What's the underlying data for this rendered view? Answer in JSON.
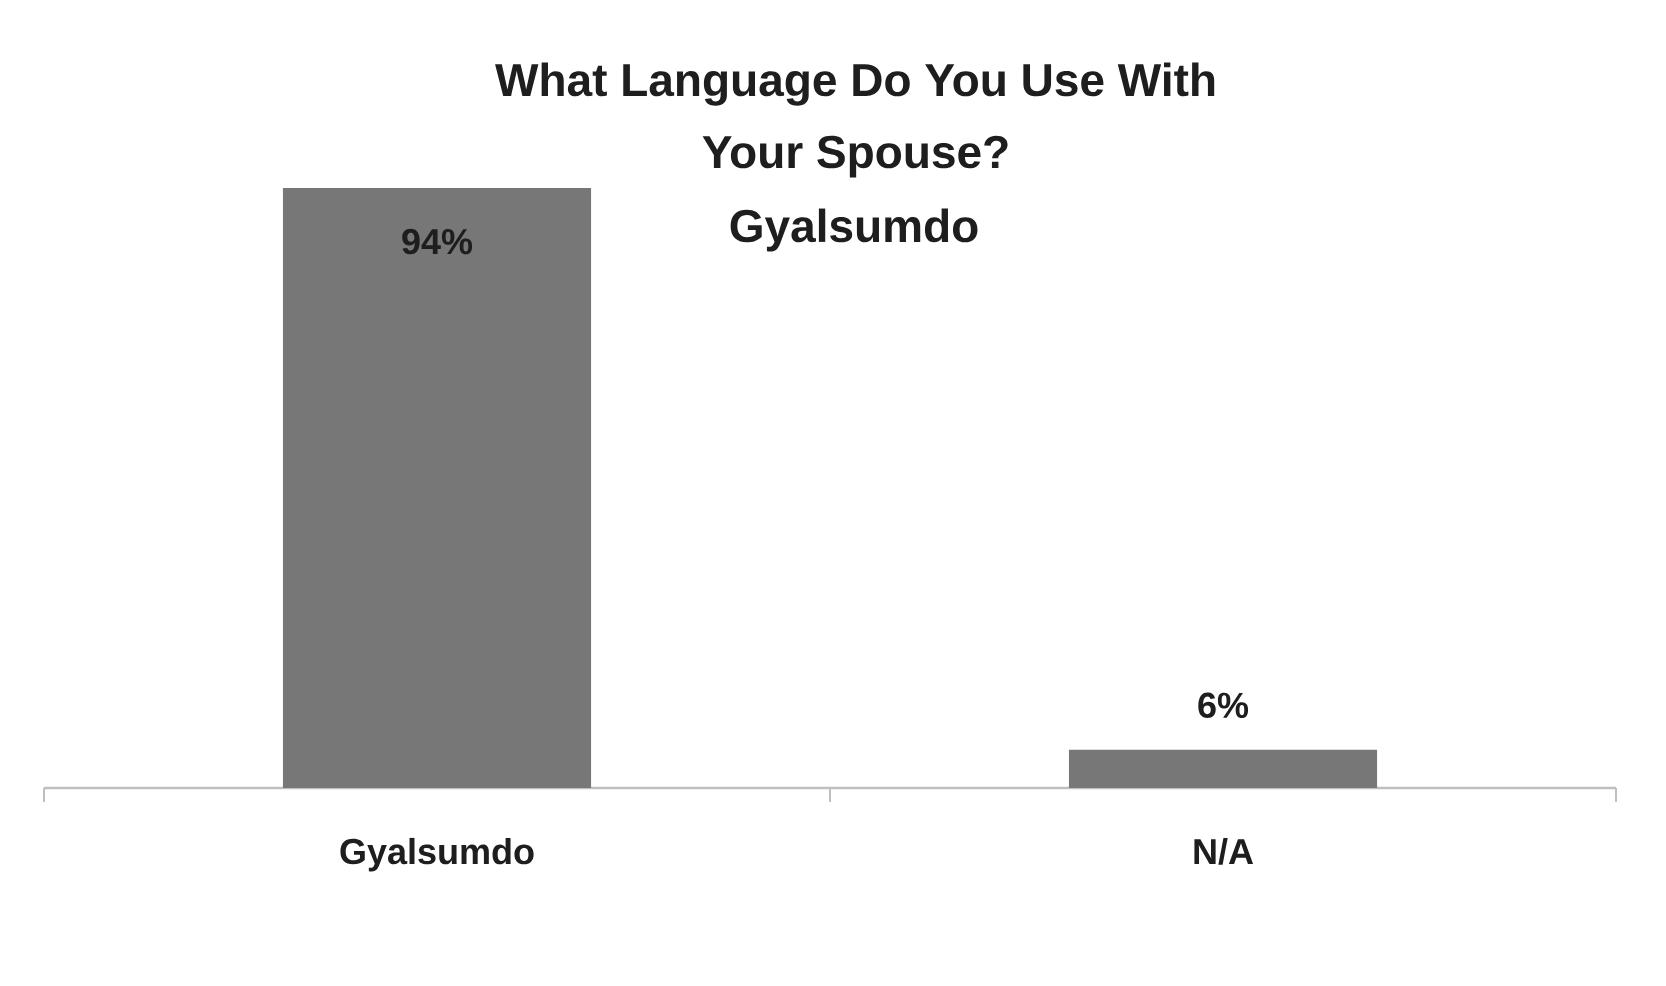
{
  "chart_data": {
    "type": "bar",
    "title": "What Language Do You Use With Your Spouse?",
    "subtitle": "Gyalsumdo",
    "categories": [
      "Gyalsumdo",
      "N/A"
    ],
    "values": [
      94,
      6
    ],
    "value_labels": [
      "94%",
      "6%"
    ],
    "color": "#777777"
  }
}
